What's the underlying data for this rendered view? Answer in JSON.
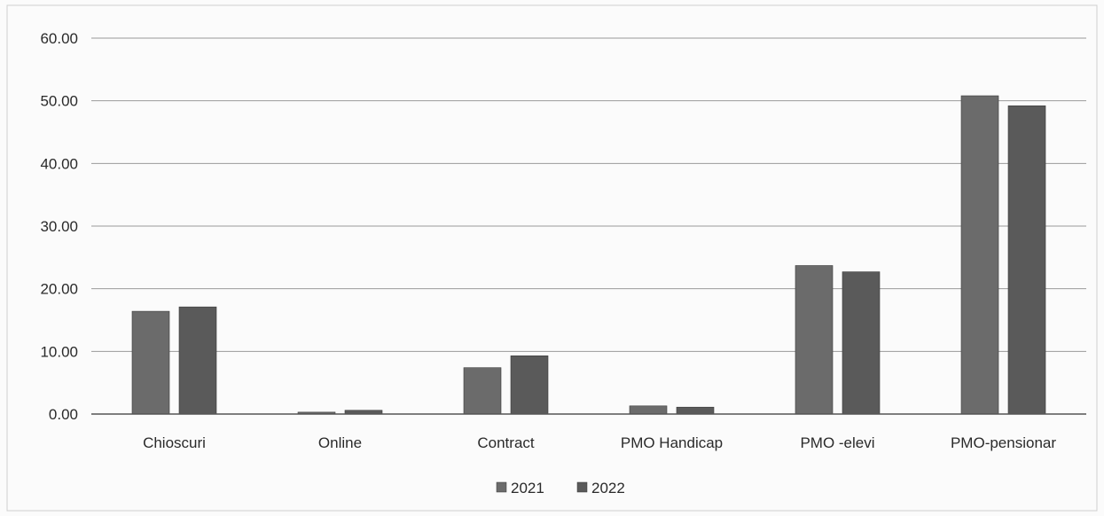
{
  "chart_data": {
    "type": "bar",
    "title": "",
    "xlabel": "",
    "ylabel": "",
    "categories": [
      "Chioscuri",
      "Online",
      "Contract",
      "PMO Handicap",
      "PMO -elevi",
      "PMO-pensionar"
    ],
    "series": [
      {
        "name": "2021",
        "values": [
          16.4,
          0.3,
          7.4,
          1.3,
          23.7,
          50.8
        ],
        "color": "#6b6b6b"
      },
      {
        "name": "2022",
        "values": [
          17.1,
          0.6,
          9.3,
          1.1,
          22.7,
          49.2
        ],
        "color": "#5a5a5a"
      }
    ],
    "ylim": [
      0,
      60
    ],
    "yticks": [
      "0.00",
      "10.00",
      "20.00",
      "30.00",
      "40.00",
      "50.00",
      "60.00"
    ],
    "grid": true,
    "legend_position": "bottom"
  }
}
